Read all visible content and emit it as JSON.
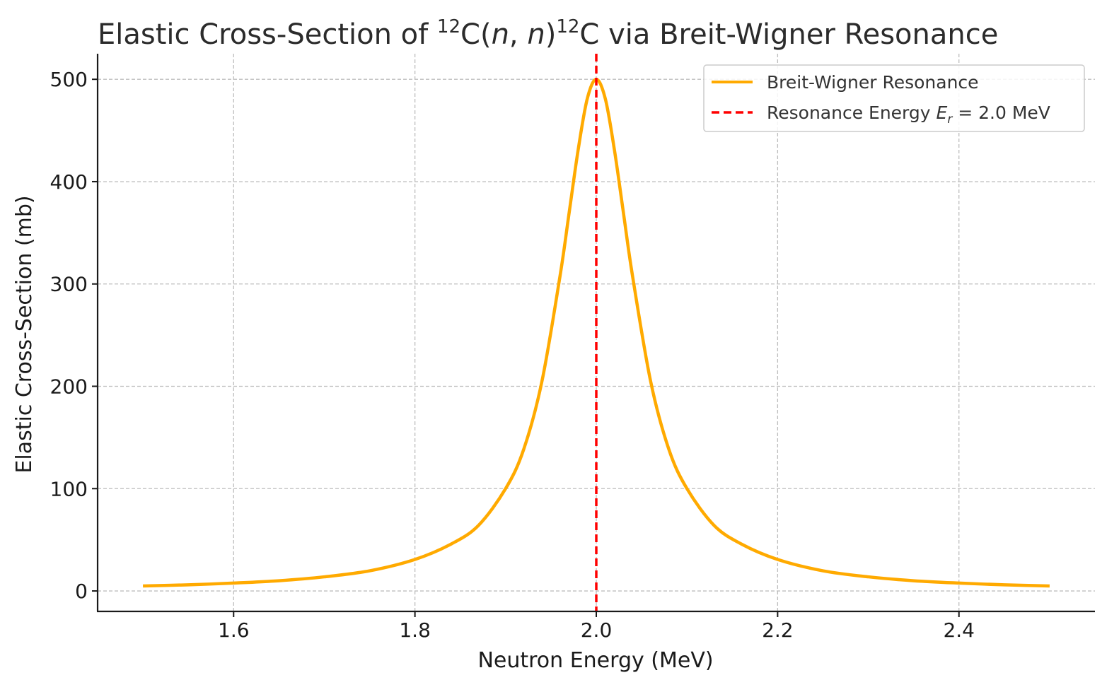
{
  "chart_data": {
    "type": "line",
    "title": {
      "prefix": "Elastic Cross-Section of ",
      "sup1": "12",
      "mid1": "C(",
      "italic1": "n",
      "mid2": ", ",
      "italic2": "n",
      "mid3": ")",
      "sup2": "12",
      "suffix": "C via Breit-Wigner Resonance"
    },
    "xlabel": "Neutron Energy (MeV)",
    "ylabel": "Elastic Cross-Section (mb)",
    "xlim": [
      1.45,
      2.55
    ],
    "ylim": [
      -20,
      525
    ],
    "xticks": [
      1.6,
      1.8,
      2.0,
      2.2,
      2.4
    ],
    "xtick_labels": [
      "1.6",
      "1.8",
      "2.0",
      "2.2",
      "2.4"
    ],
    "yticks": [
      0,
      100,
      200,
      300,
      400,
      500
    ],
    "ytick_labels": [
      "0",
      "100",
      "200",
      "300",
      "400",
      "500"
    ],
    "grid": true,
    "legend_position": "top-right",
    "series": [
      {
        "name": "Breit-Wigner Resonance",
        "color": "#FFAA00",
        "style": "solid",
        "x": [
          1.5,
          1.55,
          1.6,
          1.65,
          1.7,
          1.75,
          1.8,
          1.84,
          1.87,
          1.9,
          1.92,
          1.94,
          1.96,
          1.97,
          1.98,
          1.99,
          2.0,
          2.01,
          2.02,
          2.03,
          2.04,
          2.06,
          2.08,
          2.1,
          2.13,
          2.16,
          2.2,
          2.25,
          2.3,
          2.35,
          2.4,
          2.45,
          2.5
        ],
        "y": [
          4.9,
          6.0,
          7.7,
          10.0,
          13.8,
          19.7,
          30.8,
          45.9,
          64.0,
          100.0,
          138.5,
          204.6,
          307.7,
          369.2,
          431.0,
          480.8,
          500.0,
          480.8,
          431.0,
          369.2,
          307.7,
          204.6,
          138.5,
          100.0,
          64.0,
          45.9,
          30.8,
          19.7,
          13.8,
          10.0,
          7.7,
          6.0,
          4.9
        ]
      },
      {
        "name": "Resonance Energy",
        "legend_math": "E",
        "legend_math_sub": "r",
        "legend_math_rest": " = 2.0 MeV",
        "color": "#FF0000",
        "style": "dashed",
        "type": "vline",
        "x": [
          2.0
        ]
      }
    ]
  }
}
